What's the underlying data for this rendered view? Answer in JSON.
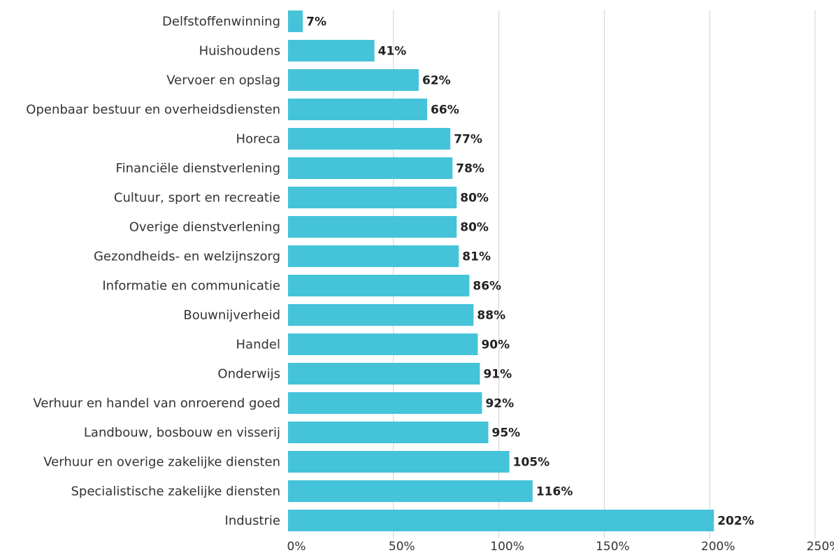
{
  "chart_data": {
    "type": "bar",
    "orientation": "horizontal",
    "categories": [
      "Delfstoffenwinning",
      "Huishoudens",
      "Vervoer en opslag",
      "Openbaar bestuur en overheidsdiensten",
      "Horeca",
      "Financiële dienstverlening",
      "Cultuur, sport en recreatie",
      "Overige dienstverlening",
      "Gezondheids- en welzijnszorg",
      "Informatie en communicatie",
      "Bouwnijverheid",
      "Handel",
      "Onderwijs",
      "Verhuur en handel van onroerend goed",
      "Landbouw, bosbouw en visserij",
      "Verhuur en overige zakelijke diensten",
      "Specialistische zakelijke diensten",
      "Industrie"
    ],
    "values": [
      7,
      41,
      62,
      66,
      77,
      78,
      80,
      80,
      81,
      86,
      88,
      90,
      91,
      92,
      95,
      105,
      116,
      202
    ],
    "value_labels": [
      "7%",
      "41%",
      "62%",
      "66%",
      "77%",
      "78%",
      "80%",
      "80%",
      "81%",
      "86%",
      "88%",
      "90%",
      "91%",
      "92%",
      "95%",
      "105%",
      "116%",
      "202%"
    ],
    "xlim": [
      0,
      250
    ],
    "x_ticks": [
      0,
      50,
      100,
      150,
      200,
      250
    ],
    "x_tick_labels": [
      "0%",
      "50%",
      "100%",
      "150%",
      "200%",
      "250%"
    ],
    "title": "",
    "xlabel": "",
    "ylabel": "",
    "grid": true,
    "bar_color": "#45c3d9"
  }
}
